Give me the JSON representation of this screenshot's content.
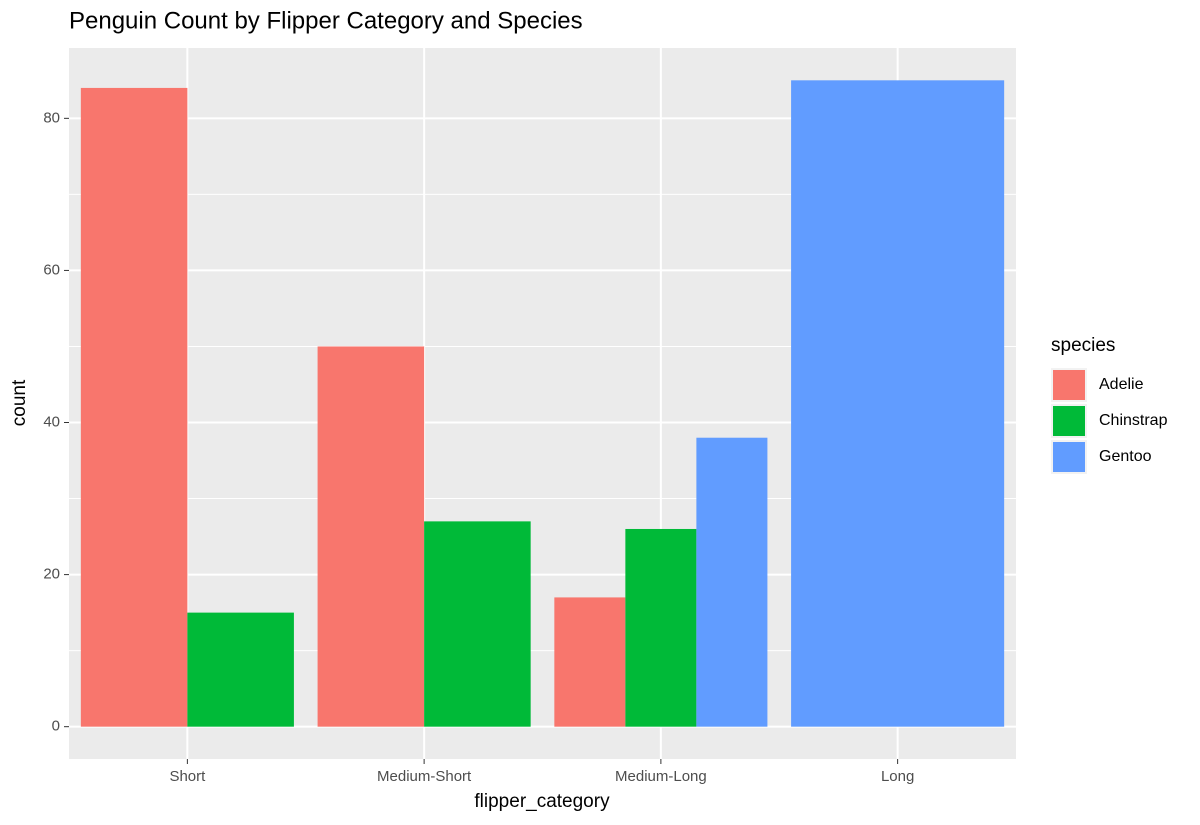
{
  "chart_data": {
    "type": "bar",
    "title": "Penguin Count by Flipper Category and Species",
    "x_label": "flipper_category",
    "y_label": "count",
    "categories": [
      "Short",
      "Medium-Short",
      "Medium-Long",
      "Long"
    ],
    "series": [
      {
        "name": "Adelie",
        "color": "#f8766d",
        "values": [
          84,
          50,
          17,
          null
        ]
      },
      {
        "name": "Chinstrap",
        "color": "#00ba38",
        "values": [
          15,
          27,
          26,
          null
        ]
      },
      {
        "name": "Gentoo",
        "color": "#619cff",
        "values": [
          null,
          null,
          38,
          85
        ]
      }
    ],
    "legend_title": "species",
    "ylim": [
      -4.25,
      89.25
    ],
    "yticks": [
      0,
      20,
      40,
      60,
      80
    ],
    "grid": true
  }
}
